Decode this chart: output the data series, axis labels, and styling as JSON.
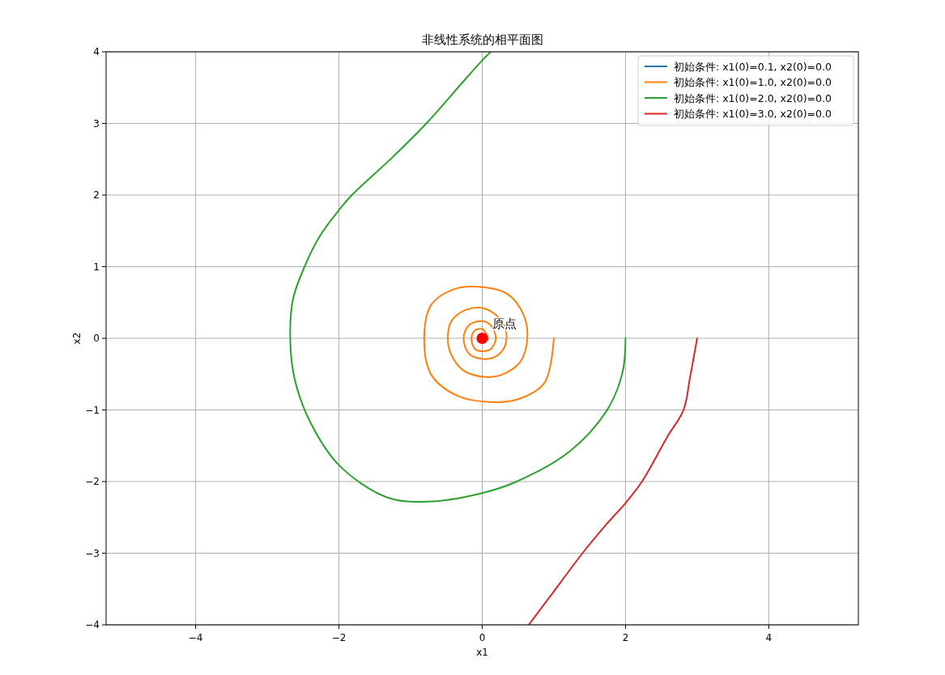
{
  "chart_data": {
    "type": "line",
    "title": "非线性系统的相平面图",
    "xlabel": "x1",
    "ylabel": "x2",
    "xlim": [
      -5.25,
      5.25
    ],
    "ylim": [
      -4,
      4
    ],
    "xticks": [
      {
        "value": -4,
        "label": "−4"
      },
      {
        "value": -2,
        "label": "−2"
      },
      0,
      2,
      4
    ],
    "yticks": [
      {
        "value": -4,
        "label": "−4"
      },
      {
        "value": -3,
        "label": "−3"
      },
      {
        "value": -2,
        "label": "−2"
      },
      {
        "value": -1,
        "label": "−1"
      },
      0,
      1,
      2,
      3,
      4
    ],
    "grid": true,
    "legend": "top right",
    "marker": "none",
    "line_style": "solid",
    "annotations": [
      {
        "text": "原点",
        "x": 0,
        "y": 0
      }
    ],
    "series": [
      {
        "name": "初始条件: x1(0)=0.1, x2(0)=0.0",
        "color": "#1f77b4"
      },
      {
        "name": "初始条件: x1(0)=1.0, x2(0)=0.0",
        "color": "#ff7f0e",
        "x": [
          1.0,
          0.87,
          0.5,
          0.12,
          -0.33,
          -0.71,
          -0.81,
          -0.71,
          -0.41,
          -0.07,
          0.35,
          0.58,
          0.63,
          0.53,
          0.27,
          0.05,
          -0.26,
          -0.44,
          -0.48,
          -0.43,
          -0.22,
          0.05,
          0.27,
          0.34,
          0.25,
          0.05,
          -0.18,
          -0.26,
          -0.18,
          0.01,
          0.12,
          0.19,
          0.12,
          0.0,
          -0.1,
          -0.15,
          -0.1,
          0.0,
          0.06,
          0.08,
          0.04,
          0.0
        ],
        "values": [
          0,
          -0.62,
          -0.85,
          -0.89,
          -0.81,
          -0.51,
          0,
          0.47,
          0.68,
          0.72,
          0.62,
          0.32,
          0,
          -0.33,
          -0.51,
          -0.54,
          -0.45,
          -0.21,
          0,
          0.24,
          0.4,
          0.41,
          0.24,
          0,
          -0.21,
          -0.29,
          -0.22,
          0,
          0.19,
          0.24,
          0.18,
          0,
          -0.15,
          -0.18,
          -0.15,
          0,
          0.11,
          0.13,
          0.06,
          0,
          -0.05,
          0
        ]
      },
      {
        "name": "初始条件: x1(0)=2.0, x2(0)=0.0",
        "color": "#2ca02c",
        "x": [
          2.0,
          1.96,
          1.75,
          1.22,
          0.48,
          0.0,
          -0.76,
          -1.33,
          -2.0,
          -2.4,
          -2.62,
          -2.68,
          -2.64,
          -2.48,
          -2.27,
          -2.0,
          -1.82,
          -1.25,
          -0.78,
          -0.26,
          0.0,
          0.12
        ],
        "values": [
          0,
          -0.47,
          -0.99,
          -1.58,
          -2.0,
          -2.16,
          -2.28,
          -2.22,
          -1.77,
          -1.17,
          -0.56,
          0,
          0.55,
          1.0,
          1.42,
          1.79,
          2.0,
          2.53,
          3.0,
          3.59,
          3.88,
          4.0
        ]
      },
      {
        "name": "初始条件: x1(0)=3.0, x2(0)=0.0",
        "color": "#d62728",
        "x": [
          3.0,
          2.9,
          2.81,
          2.58,
          2.23,
          2.0,
          1.74,
          1.4,
          0.98,
          0.65
        ],
        "values": [
          0,
          -0.55,
          -1.0,
          -1.38,
          -2.0,
          -2.3,
          -2.59,
          -3.0,
          -3.56,
          -4.0
        ]
      },
      {
        "type": "scatter",
        "color": "#ff0000",
        "x": [
          0
        ],
        "values": [
          0
        ],
        "marker": "circle"
      }
    ]
  }
}
